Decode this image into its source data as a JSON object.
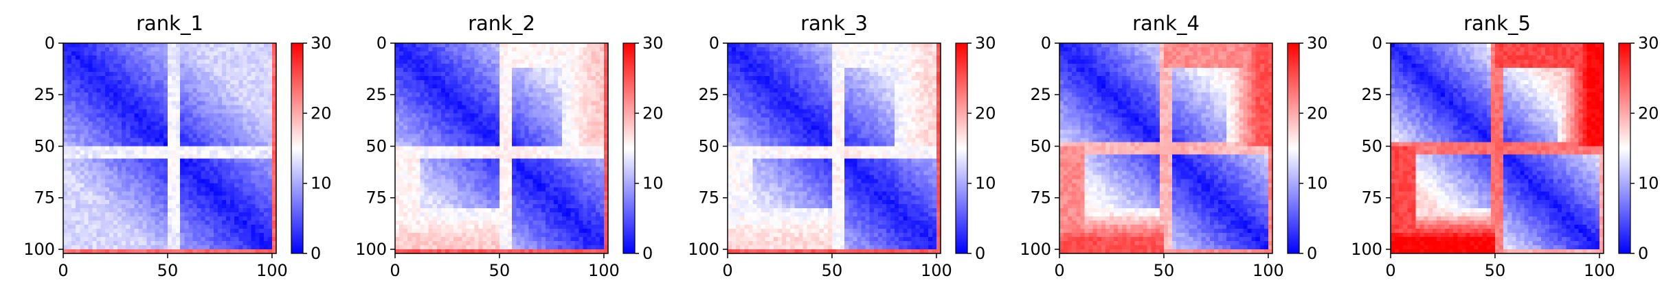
{
  "chart_data": [
    {
      "type": "heatmap",
      "title": "rank_1",
      "x_ticks": [
        "0",
        "50",
        "100"
      ],
      "y_ticks": [
        "0",
        "25",
        "50",
        "75",
        "100"
      ],
      "xlim": [
        0,
        102
      ],
      "ylim": [
        0,
        102
      ],
      "colorbar": {
        "ticks": [
          "0",
          "10",
          "20",
          "30"
        ],
        "range": [
          0,
          30
        ],
        "colormap": [
          "#0000ff",
          "#ffffff",
          "#ff0000"
        ]
      },
      "pattern": {
        "diag_low": true,
        "band_row": 53,
        "band_value": 15,
        "edge_value": 24,
        "corner_high": 0,
        "far_offdiag": 11
      }
    },
    {
      "type": "heatmap",
      "title": "rank_2",
      "x_ticks": [
        "0",
        "50",
        "100"
      ],
      "y_ticks": [
        "0",
        "25",
        "50",
        "75",
        "100"
      ],
      "xlim": [
        0,
        102
      ],
      "ylim": [
        0,
        102
      ],
      "colorbar": {
        "ticks": [
          "0",
          "10",
          "20",
          "30"
        ],
        "range": [
          0,
          30
        ],
        "colormap": [
          "#0000ff",
          "#ffffff",
          "#ff0000"
        ]
      },
      "pattern": {
        "diag_low": true,
        "band_row": 53,
        "band_value": 16,
        "edge_value": 25,
        "corner_high": 0.25,
        "far_offdiag": 12
      }
    },
    {
      "type": "heatmap",
      "title": "rank_3",
      "x_ticks": [
        "0",
        "50",
        "100"
      ],
      "y_ticks": [
        "0",
        "25",
        "50",
        "75",
        "100"
      ],
      "xlim": [
        0,
        102
      ],
      "ylim": [
        0,
        102
      ],
      "colorbar": {
        "ticks": [
          "0",
          "10",
          "20",
          "30"
        ],
        "range": [
          0,
          30
        ],
        "colormap": [
          "#0000ff",
          "#ffffff",
          "#ff0000"
        ]
      },
      "pattern": {
        "diag_low": true,
        "band_row": 53,
        "band_value": 16,
        "edge_value": 25,
        "corner_high": 0.2,
        "far_offdiag": 12
      }
    },
    {
      "type": "heatmap",
      "title": "rank_4",
      "x_ticks": [
        "0",
        "50",
        "100"
      ],
      "y_ticks": [
        "0",
        "25",
        "50",
        "75",
        "100"
      ],
      "xlim": [
        0,
        102
      ],
      "ylim": [
        0,
        102
      ],
      "colorbar": {
        "ticks": [
          "0",
          "10",
          "20",
          "30"
        ],
        "range": [
          0,
          30
        ],
        "colormap": [
          "#0000ff",
          "#ffffff",
          "#ff0000"
        ]
      },
      "pattern": {
        "diag_low": true,
        "band_row": 51,
        "band_value": 20,
        "edge_value": 22,
        "corner_high": 0.7,
        "far_offdiag": 14
      }
    },
    {
      "type": "heatmap",
      "title": "rank_5",
      "x_ticks": [
        "0",
        "50",
        "100"
      ],
      "y_ticks": [
        "0",
        "25",
        "50",
        "75",
        "100"
      ],
      "xlim": [
        0,
        102
      ],
      "ylim": [
        0,
        102
      ],
      "colorbar": {
        "ticks": [
          "0",
          "10",
          "20",
          "30"
        ],
        "range": [
          0,
          30
        ],
        "colormap": [
          "#0000ff",
          "#ffffff",
          "#ff0000"
        ]
      },
      "pattern": {
        "diag_low": true,
        "band_row": 51,
        "band_value": 24,
        "edge_value": 20,
        "corner_high": 1.0,
        "far_offdiag": 16
      }
    }
  ]
}
